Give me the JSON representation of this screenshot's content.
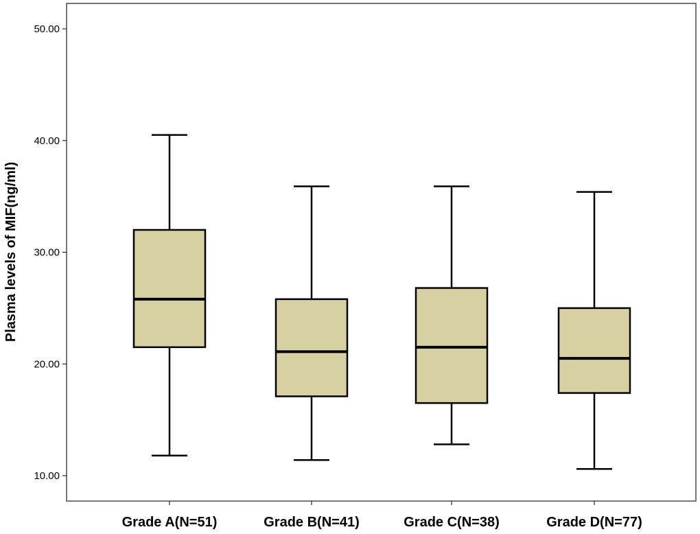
{
  "chart_data": {
    "type": "boxplot",
    "title": "",
    "xlabel": "",
    "ylabel": "Plasma levels of MIF(ng/ml)",
    "ylim": [
      7.8,
      52.4
    ],
    "yticks": [
      10,
      20,
      30,
      40,
      50
    ],
    "ytick_labels": [
      "10.00",
      "20.00",
      "30.00",
      "40.00",
      "50.00"
    ],
    "categories": [
      "Grade A(N=51)",
      "Grade B(N=41)",
      "Grade C(N=38)",
      "Grade D(N=77)"
    ],
    "boxes": [
      {
        "whislo": 11.8,
        "q1": 21.5,
        "med": 25.8,
        "q3": 32.0,
        "whishi": 40.5
      },
      {
        "whislo": 11.4,
        "q1": 17.1,
        "med": 21.1,
        "q3": 25.8,
        "whishi": 35.9
      },
      {
        "whislo": 12.8,
        "q1": 16.5,
        "med": 21.5,
        "q3": 26.8,
        "whishi": 35.9
      },
      {
        "whislo": 10.6,
        "q1": 17.4,
        "med": 20.5,
        "q3": 25.0,
        "whishi": 35.4
      }
    ],
    "grid": false,
    "legend": "none",
    "colors": {
      "box_fill": "#d7d1a1",
      "stroke": "#000000",
      "frame": "#4a4a4a"
    }
  }
}
